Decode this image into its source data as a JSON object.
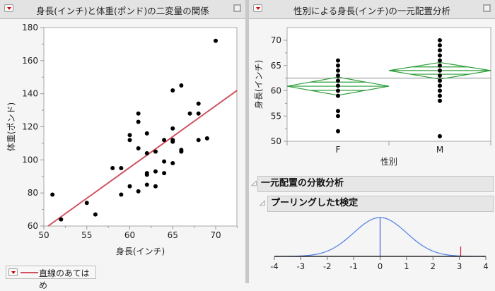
{
  "left_panel": {
    "title": "身長(インチ)と体重(ポンド)の二変量の関係",
    "legend_label": "直線のあてはめ"
  },
  "right_panel": {
    "title": "性別による身長(インチ)の一元配置分析",
    "outline_anova": "一元配置の分散分析",
    "outline_ttest": "プーリングしたt検定"
  },
  "colors": {
    "fit_line": "#d0525e",
    "diamond": "#2e9e3a",
    "density": "#4f7de8",
    "disclosure_red": "#d10000"
  },
  "chart_data": [
    {
      "type": "scatter",
      "title": "身長(インチ)と体重(ポンド)の二変量の関係",
      "xlabel": "身長(インチ)",
      "ylabel": "体重(ポンド)",
      "xlim": [
        50,
        72.5
      ],
      "ylim": [
        60,
        180
      ],
      "xticks": [
        50,
        55,
        60,
        65,
        70
      ],
      "yticks": [
        60,
        80,
        100,
        120,
        140,
        160,
        180
      ],
      "points": [
        [
          51,
          79
        ],
        [
          52,
          64
        ],
        [
          55,
          74
        ],
        [
          56,
          67
        ],
        [
          58,
          95
        ],
        [
          59,
          95
        ],
        [
          59,
          79
        ],
        [
          60,
          115
        ],
        [
          60,
          112
        ],
        [
          60,
          84
        ],
        [
          61,
          128
        ],
        [
          61,
          123
        ],
        [
          61,
          107
        ],
        [
          61,
          81
        ],
        [
          62,
          116
        ],
        [
          62,
          104
        ],
        [
          62,
          92
        ],
        [
          62,
          91
        ],
        [
          62,
          85
        ],
        [
          63,
          105
        ],
        [
          63,
          93
        ],
        [
          63,
          84
        ],
        [
          64,
          112
        ],
        [
          64,
          99
        ],
        [
          64,
          92
        ],
        [
          65,
          142
        ],
        [
          65,
          119
        ],
        [
          65,
          112
        ],
        [
          65,
          111
        ],
        [
          65,
          98
        ],
        [
          66,
          145
        ],
        [
          66,
          106
        ],
        [
          66,
          105
        ],
        [
          67,
          128
        ],
        [
          68,
          134
        ],
        [
          68,
          128
        ],
        [
          68,
          112
        ],
        [
          69,
          113
        ],
        [
          70,
          172
        ]
      ],
      "fit_line": {
        "label": "直線のあてはめ",
        "x": [
          50.5,
          72.5
        ],
        "y": [
          60,
          142
        ]
      }
    },
    {
      "type": "scatter",
      "title": "性別による身長(インチ)の一元配置分析",
      "xlabel": "性別",
      "ylabel": "身長(インチ)",
      "categories": [
        "F",
        "M"
      ],
      "ylim": [
        50,
        72
      ],
      "yticks": [
        50,
        55,
        60,
        65,
        70
      ],
      "series": [
        {
          "name": "F",
          "values": [
            52,
            55,
            56,
            59,
            60,
            61,
            62,
            63,
            64,
            65,
            66
          ]
        },
        {
          "name": "M",
          "values": [
            51,
            58,
            59,
            60,
            61,
            62,
            63,
            64,
            65,
            66,
            67,
            68,
            69,
            70
          ]
        }
      ],
      "means_diamonds": [
        {
          "group": "F",
          "mean": 60.9,
          "lower": 59.1,
          "upper": 62.7
        },
        {
          "group": "M",
          "mean": 64.0,
          "lower": 62.3,
          "upper": 65.6
        }
      ],
      "grand_mean": 62.5
    },
    {
      "type": "line",
      "title": "プーリングしたt検定",
      "xlim": [
        -4,
        4
      ],
      "xticks": [
        -4,
        -3,
        -2,
        -1,
        0,
        1,
        2,
        3,
        4
      ],
      "curve": "t density",
      "observed_t": 3.05,
      "shaded_tails": [
        [
          -4,
          -3.05
        ],
        [
          3.05,
          4
        ]
      ]
    }
  ]
}
